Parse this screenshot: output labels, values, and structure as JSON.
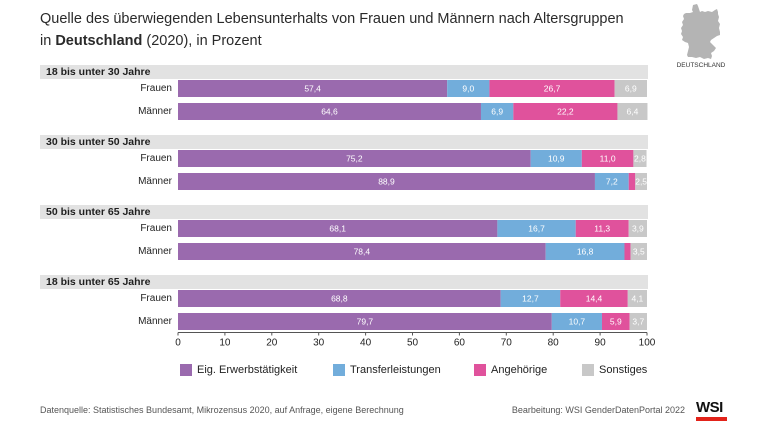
{
  "chart_data": {
    "type": "bar",
    "orientation": "horizontal",
    "stacked": true,
    "title": {
      "line1": "Quelle des überwiegenden Lebensunterhalts von Frauen und Männern nach Altersgruppen",
      "line2_prefix": "in ",
      "line2_bold": "Deutschland",
      "line2_suffix": " (2020), in Prozent"
    },
    "xlim": [
      0,
      100
    ],
    "xticks": [
      0,
      10,
      20,
      30,
      40,
      50,
      60,
      70,
      80,
      90,
      100
    ],
    "grid": false,
    "legend_position": "bottom",
    "groups": [
      {
        "label": "18 bis unter 30 Jahre",
        "rows": [
          "Frauen",
          "Männer"
        ]
      },
      {
        "label": "30 bis unter 50 Jahre",
        "rows": [
          "Frauen",
          "Männer"
        ]
      },
      {
        "label": "50 bis unter 65 Jahre",
        "rows": [
          "Frauen",
          "Männer"
        ]
      },
      {
        "label": "18 bis unter 65 Jahre",
        "rows": [
          "Frauen",
          "Männer"
        ]
      }
    ],
    "series": [
      {
        "name": "Eig. Erwerbstätigkeit",
        "color": "#9a6aae",
        "values": [
          57.4,
          64.6,
          75.2,
          88.9,
          68.1,
          78.4,
          68.8,
          79.7
        ],
        "labels": [
          "57,4",
          "64,6",
          "75,2",
          "88,9",
          "68,1",
          "78,4",
          "68,8",
          "79,7"
        ]
      },
      {
        "name": "Transferleistungen",
        "color": "#72addb",
        "values": [
          9.0,
          6.9,
          10.9,
          7.2,
          16.7,
          16.8,
          12.7,
          10.7
        ],
        "labels": [
          "9,0",
          "6,9",
          "10,9",
          "7,2",
          "16,7",
          "16,8",
          "12,7",
          "10,7"
        ]
      },
      {
        "name": "Angehörige",
        "color": "#e0529c",
        "values": [
          26.7,
          22.2,
          11.0,
          1.4,
          11.3,
          1.3,
          14.4,
          5.9
        ],
        "labels": [
          "26,7",
          "22,2",
          "11,0",
          null,
          "11,3",
          null,
          "14,4",
          "5,9"
        ]
      },
      {
        "name": "Sonstiges",
        "color": "#c8c8c8",
        "values": [
          6.9,
          6.4,
          2.8,
          2.5,
          3.9,
          3.5,
          4.1,
          3.7
        ],
        "labels": [
          "6,9",
          "6,4",
          "2,8",
          "2,5",
          "3,9",
          "3,5",
          "4,1",
          "3,7"
        ]
      }
    ]
  },
  "map": {
    "label": "DEUTSCHLAND",
    "icon": "germany-map-icon"
  },
  "footer": {
    "source": "Datenquelle: Statistisches Bundesamt, Mikrozensus 2020, auf Anfrage, eigene Berechnung",
    "credit": "Bearbeitung: WSI GenderDatenPortal 2022"
  },
  "logo": {
    "text": "WSI"
  },
  "colors": {
    "group_band": "#e2e2e2",
    "map": "#b4b4b4",
    "logo_accent": "#e2231a"
  }
}
